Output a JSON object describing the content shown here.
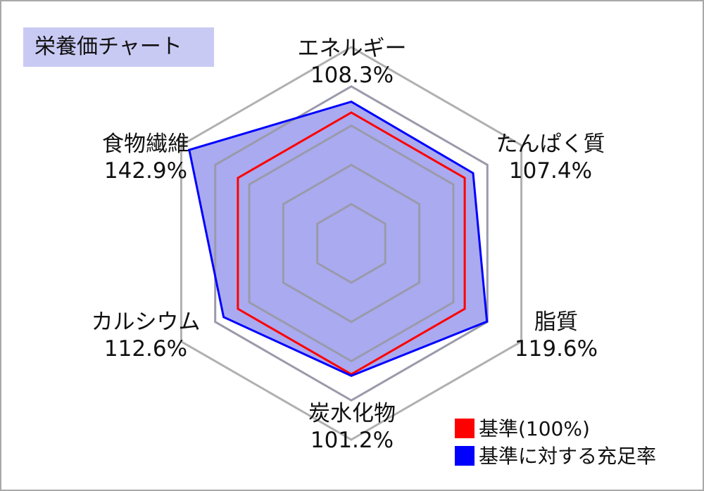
{
  "chart_data": {
    "type": "radar",
    "title": "栄養価チャート",
    "max": 1.5,
    "ring_levels": [
      0.3,
      0.6,
      0.9,
      1.2,
      1.5
    ],
    "axes": [
      {
        "name": "エネルギー",
        "value_label": "108.3%"
      },
      {
        "name": "たんぱく質",
        "value_label": "107.4%"
      },
      {
        "name": "脂質",
        "value_label": "119.6%"
      },
      {
        "name": "炭水化物",
        "value_label": "101.2%"
      },
      {
        "name": "カルシウム",
        "value_label": "112.6%"
      },
      {
        "name": "食物繊維",
        "value_label": "142.9%"
      }
    ],
    "series": [
      {
        "name": "基準(100%)",
        "color": "#ff0000",
        "values": [
          1.0,
          1.0,
          1.0,
          1.0,
          1.0,
          1.0
        ]
      },
      {
        "name": "基準に対する充足率",
        "color": "#0000ff",
        "fill": "#aaaaf0",
        "values": [
          1.083,
          1.074,
          1.196,
          1.012,
          1.126,
          1.429
        ]
      }
    ],
    "grid_color": "#9a9aab",
    "outer_ring_color": "#b0b0b0"
  }
}
